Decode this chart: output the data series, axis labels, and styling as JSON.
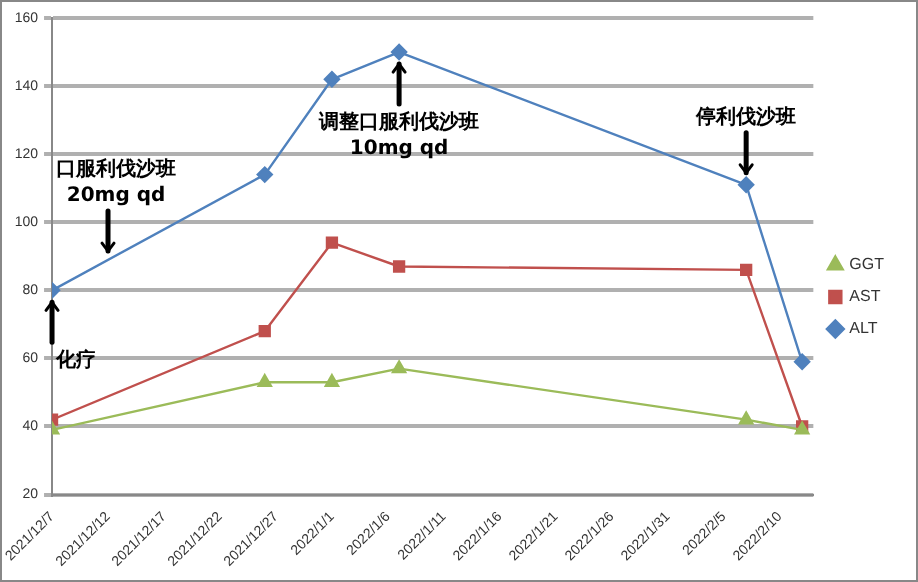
{
  "chart_data": {
    "type": "line",
    "x": [
      "2021-12-07",
      "2021-12-26",
      "2022-01-01",
      "2022-01-07",
      "2022-02-07",
      "2022-02-12"
    ],
    "series": [
      {
        "name": "ALT",
        "color": "#4f81bd",
        "marker": "diamond",
        "values": [
          80,
          114,
          142,
          150,
          111,
          59
        ]
      },
      {
        "name": "AST",
        "color": "#c0504d",
        "marker": "square",
        "values": [
          42,
          68,
          94,
          87,
          86,
          40
        ]
      },
      {
        "name": "GGT",
        "color": "#9bbb59",
        "marker": "triangle",
        "values": [
          39,
          53,
          53,
          57,
          42,
          39
        ]
      }
    ],
    "xlim": [
      "2021-12-07",
      "2022-02-13"
    ],
    "xticks": [
      {
        "value": "2021-12-07",
        "label": "2021/12/7"
      },
      {
        "value": "2021-12-12",
        "label": "2021/12/12"
      },
      {
        "value": "2021-12-17",
        "label": "2021/12/17"
      },
      {
        "value": "2021-12-22",
        "label": "2021/12/22"
      },
      {
        "value": "2021-12-27",
        "label": "2021/12/27"
      },
      {
        "value": "2022-01-01",
        "label": "2022/1/1"
      },
      {
        "value": "2022-01-06",
        "label": "2022/1/6"
      },
      {
        "value": "2022-01-11",
        "label": "2022/1/11"
      },
      {
        "value": "2022-01-16",
        "label": "2022/1/16"
      },
      {
        "value": "2022-01-21",
        "label": "2022/1/21"
      },
      {
        "value": "2022-01-26",
        "label": "2022/1/26"
      },
      {
        "value": "2022-01-31",
        "label": "2022/1/31"
      },
      {
        "value": "2022-02-05",
        "label": "2022/2/5"
      },
      {
        "value": "2022-02-10",
        "label": "2022/2/10"
      }
    ],
    "ylim": [
      20,
      160
    ],
    "yticks": [
      20,
      40,
      60,
      80,
      100,
      120,
      140,
      160
    ],
    "grid": "y",
    "legend": "right",
    "line_style": "solid",
    "annotations": [
      {
        "text": "化疗",
        "x": "2021-12-07",
        "y": 80
      },
      {
        "text": "口服利伐沙班\n20mg qd",
        "x": "2021-12-12",
        "y": 88
      },
      {
        "text": "调整口服利伐沙班\n10mg qd",
        "x": "2022-01-07",
        "y": 150
      },
      {
        "text": "停利伐沙班",
        "x": "2022-02-07",
        "y": 111
      }
    ]
  }
}
